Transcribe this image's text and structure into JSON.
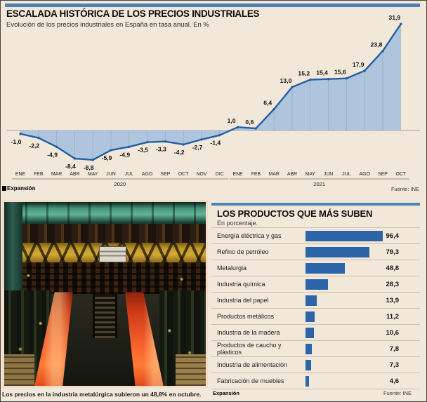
{
  "colors": {
    "background": "#f2e8da",
    "accent_blue": "#4f81b9",
    "line_blue": "#2060a4",
    "area_fill_blue": "#afc5de",
    "grid_blue": "#9cb2cb",
    "bar_blue": "#2b64a8",
    "zero_line": "#b3aea3",
    "text": "#111111"
  },
  "photo": {
    "caption": "Los precios en la industria metalúrgica subieron un 48,8% en octubre."
  },
  "chart_data": [
    {
      "type": "area",
      "title": "ESCALADA HISTÓRICA DE LOS PRECIOS INDUSTRIALES",
      "subtitle": "Evolución de los precios industriales en España en tasa anual. En %",
      "categories": [
        "ENE",
        "FEB",
        "MAR",
        "ABR",
        "MAY",
        "JUN",
        "JUL",
        "AGO",
        "SEP",
        "OCT",
        "NOV",
        "DIC",
        "ENE",
        "FEB",
        "MAR",
        "ABR",
        "MAY",
        "JUN",
        "JUL",
        "AGO",
        "SEP",
        "OCT"
      ],
      "year_groups": [
        {
          "label": "2020",
          "start": 0,
          "end": 11
        },
        {
          "label": "2021",
          "start": 12,
          "end": 21
        }
      ],
      "values": [
        -1.0,
        -2.2,
        -4.9,
        -8.4,
        -8.8,
        -5.9,
        -4.9,
        -3.5,
        -3.3,
        -4.2,
        -2.7,
        -1.4,
        1.0,
        0.6,
        6.4,
        13.0,
        15.2,
        15.4,
        15.6,
        17.9,
        23.8,
        31.9
      ],
      "value_labels": [
        "-1,0",
        "-2,2",
        "-4,9",
        "-8,4",
        "-8,8",
        "-5,9",
        "-4,9",
        "-3,5",
        "-3,3",
        "-4,2",
        "-2,7",
        "-1,4",
        "1,0",
        "0,6",
        "6,4",
        "13,0",
        "15,2",
        "15,4",
        "15,6",
        "17,9",
        "23,8",
        "31,9"
      ],
      "ylim": [
        -10,
        34
      ],
      "grid": "vertical-inside-area",
      "source": "Fuente: INE",
      "brand": "Expansión"
    },
    {
      "type": "bar",
      "title": "LOS PRODUCTOS QUE MÁS SUBEN",
      "subtitle": "En porcentaje.",
      "categories": [
        "Energía eléctrica y gas",
        "Refino de petróleo",
        "Metalurgia",
        "Industria química",
        "Industria del papel",
        "Productos metálicos",
        "Industria de la madera",
        "Productos de caucho y plásticos",
        "Industria de alimentación",
        "Fabricación de muebles"
      ],
      "values": [
        96.4,
        79.3,
        48.8,
        28.3,
        13.9,
        11.2,
        10.6,
        7.8,
        7.3,
        4.6
      ],
      "value_labels": [
        "96,4",
        "79,3",
        "48,8",
        "28,3",
        "13,9",
        "11,2",
        "10,6",
        "7,8",
        "7,3",
        "4,6"
      ],
      "xlim": [
        0,
        100
      ],
      "orientation": "horizontal",
      "source": "Fuente: INE",
      "brand": "Expansión"
    }
  ]
}
